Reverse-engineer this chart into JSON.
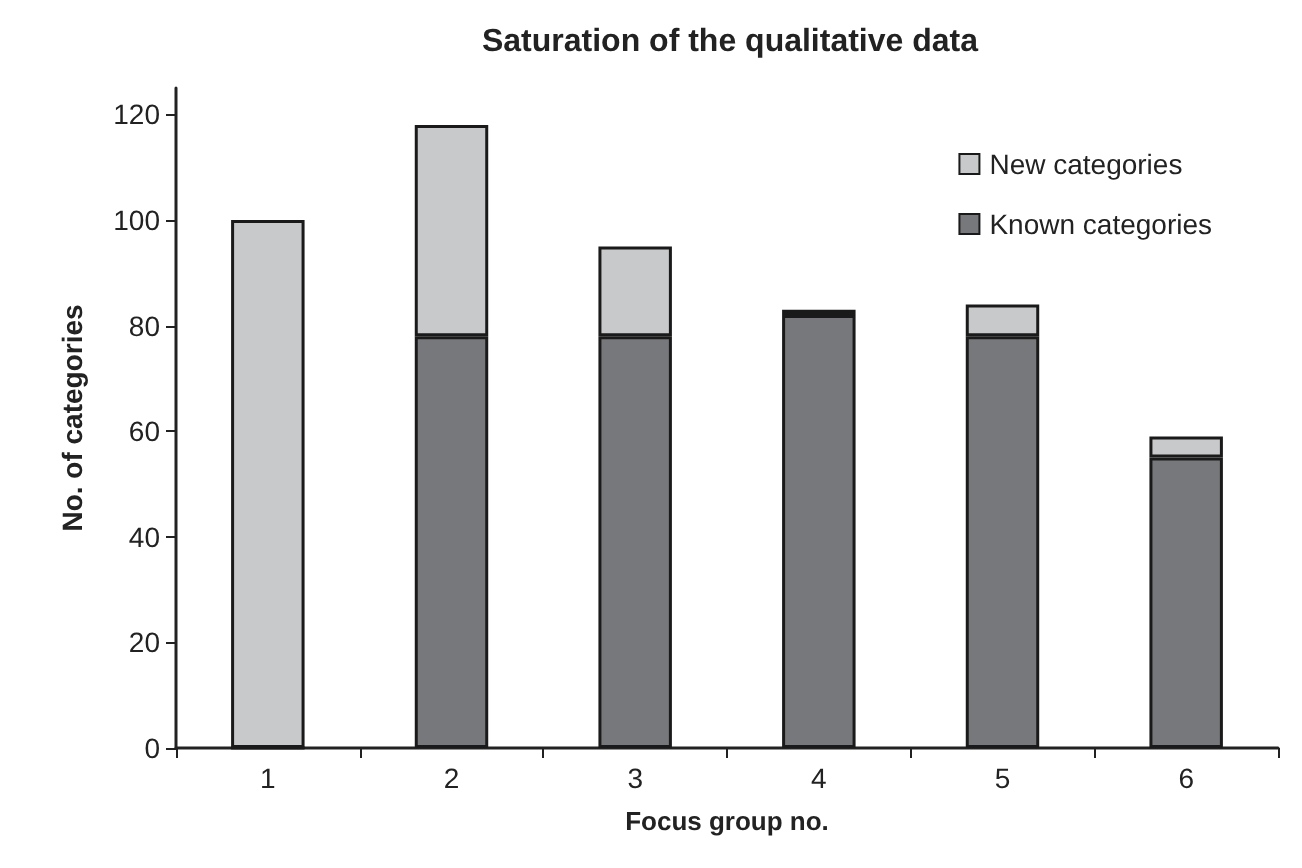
{
  "chart_data": {
    "type": "bar",
    "title": "Saturation of the qualitative data",
    "xlabel": "Focus group no.",
    "ylabel": "No. of categories",
    "categories": [
      "1",
      "2",
      "3",
      "4",
      "5",
      "6"
    ],
    "series": [
      {
        "name": "Known categories",
        "color": "#77787b",
        "values": [
          0,
          78,
          78,
          82,
          78,
          55
        ]
      },
      {
        "name": "New categories",
        "color": "#c8c9cb",
        "values": [
          100,
          40,
          17,
          1,
          6,
          4
        ]
      }
    ],
    "stacked": true,
    "ylim": [
      0,
      125
    ],
    "yticks": [
      0,
      20,
      40,
      60,
      80,
      100,
      120
    ],
    "grid": false,
    "legend": "top right"
  }
}
